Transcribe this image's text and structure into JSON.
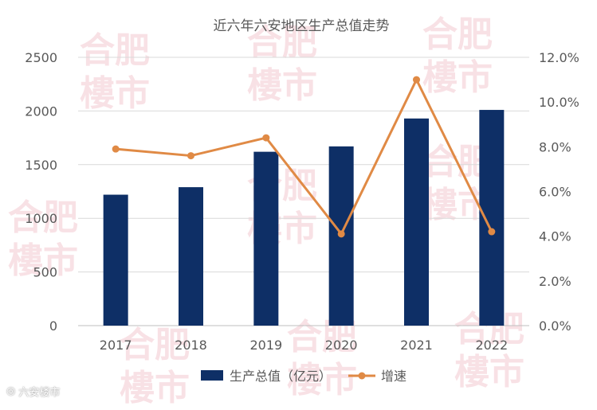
{
  "chart_data": {
    "type": "bar",
    "title": "近六年六安地区生产总值走势",
    "categories": [
      "2017",
      "2018",
      "2019",
      "2020",
      "2021",
      "2022"
    ],
    "series": [
      {
        "name": "生产总值（亿元）",
        "type": "bar",
        "axis": "left",
        "color": "#0E2F66",
        "values": [
          1220,
          1290,
          1620,
          1670,
          1930,
          2010
        ]
      },
      {
        "name": "增速",
        "type": "line",
        "axis": "right",
        "color": "#E08A45",
        "values": [
          0.079,
          0.076,
          0.084,
          0.041,
          0.11,
          0.042
        ]
      }
    ],
    "y_left": {
      "range": [
        0,
        2500
      ],
      "ticks": [
        "0",
        "500",
        "1000",
        "1500",
        "2000",
        "2500"
      ]
    },
    "y_right": {
      "range": [
        0,
        0.12
      ],
      "ticks": [
        "0.0%",
        "2.0%",
        "4.0%",
        "6.0%",
        "8.0%",
        "10.0%",
        "12.0%"
      ]
    },
    "grid": true,
    "legend_position": "bottom"
  },
  "watermark": {
    "text_line1": "合肥",
    "text_line2": "樓市",
    "color": "#F3C9D0"
  },
  "footer": {
    "text": "六安楼市",
    "icon": "camera-eye-icon"
  }
}
